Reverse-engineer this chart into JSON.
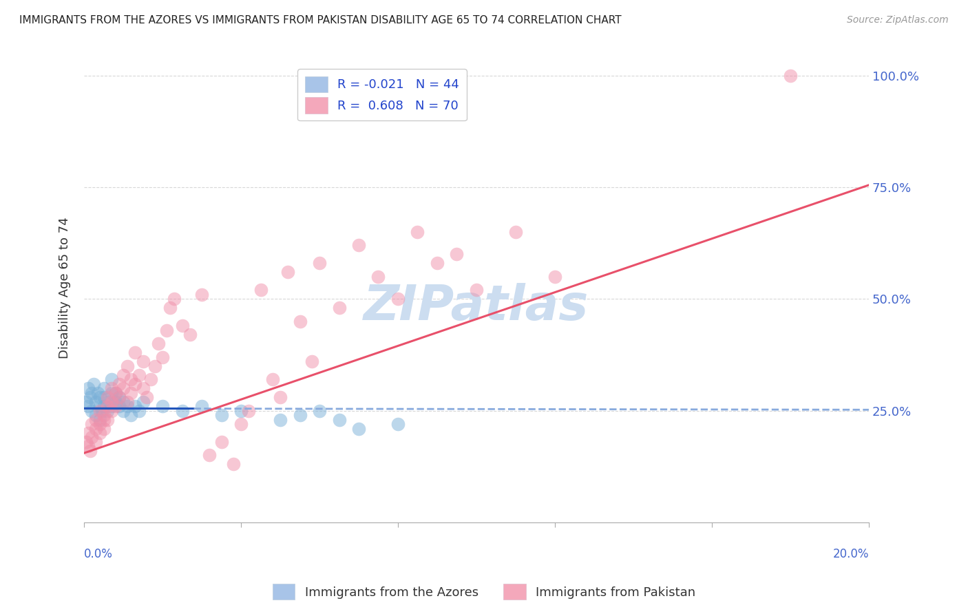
{
  "title": "IMMIGRANTS FROM THE AZORES VS IMMIGRANTS FROM PAKISTAN DISABILITY AGE 65 TO 74 CORRELATION CHART",
  "source": "Source: ZipAtlas.com",
  "ylabel": "Disability Age 65 to 74",
  "ytick_labels": [
    "100.0%",
    "75.0%",
    "50.0%",
    "25.0%"
  ],
  "ytick_values": [
    1.0,
    0.75,
    0.5,
    0.25
  ],
  "watermark": "ZIPatlas",
  "legend1_labels": [
    "R = -0.021   N = 44",
    "R =  0.608   N = 70"
  ],
  "legend1_box_colors": [
    "#a8c4e8",
    "#f4a8bb"
  ],
  "legend2_labels": [
    "Immigrants from the Azores",
    "Immigrants from Pakistan"
  ],
  "azores_color": "#7ab0d8",
  "pakistan_color": "#f090aa",
  "azores_line_color": "#2255bb",
  "pakistan_line_color": "#e8506a",
  "azores_line_solid_color": "#2255bb",
  "azores_line_dash_color": "#88aadd",
  "xlim": [
    0.0,
    0.2
  ],
  "ylim": [
    0.0,
    1.05
  ],
  "bg_color": "#ffffff",
  "grid_color": "#d8d8d8",
  "title_fontsize": 11,
  "axis_label_color": "#4466cc",
  "watermark_color": "#ccddf0",
  "watermark_fontsize": 52,
  "azores_x": [
    0.0005,
    0.001,
    0.001,
    0.0015,
    0.002,
    0.002,
    0.0025,
    0.003,
    0.003,
    0.0035,
    0.004,
    0.004,
    0.004,
    0.0045,
    0.005,
    0.005,
    0.005,
    0.006,
    0.006,
    0.007,
    0.007,
    0.007,
    0.008,
    0.008,
    0.009,
    0.009,
    0.01,
    0.01,
    0.011,
    0.012,
    0.013,
    0.014,
    0.015,
    0.02,
    0.025,
    0.03,
    0.035,
    0.04,
    0.05,
    0.055,
    0.06,
    0.065,
    0.07,
    0.08
  ],
  "azores_y": [
    0.27,
    0.3,
    0.26,
    0.28,
    0.29,
    0.25,
    0.31,
    0.27,
    0.24,
    0.29,
    0.28,
    0.26,
    0.23,
    0.25,
    0.28,
    0.26,
    0.3,
    0.25,
    0.27,
    0.29,
    0.26,
    0.32,
    0.27,
    0.29,
    0.26,
    0.28,
    0.25,
    0.27,
    0.26,
    0.24,
    0.26,
    0.25,
    0.27,
    0.26,
    0.25,
    0.26,
    0.24,
    0.25,
    0.23,
    0.24,
    0.25,
    0.23,
    0.21,
    0.22
  ],
  "pakistan_x": [
    0.0005,
    0.001,
    0.001,
    0.0015,
    0.002,
    0.002,
    0.003,
    0.003,
    0.003,
    0.004,
    0.004,
    0.004,
    0.005,
    0.005,
    0.005,
    0.006,
    0.006,
    0.006,
    0.007,
    0.007,
    0.007,
    0.008,
    0.008,
    0.009,
    0.009,
    0.01,
    0.01,
    0.011,
    0.011,
    0.012,
    0.012,
    0.013,
    0.013,
    0.014,
    0.015,
    0.015,
    0.016,
    0.017,
    0.018,
    0.019,
    0.02,
    0.021,
    0.022,
    0.023,
    0.025,
    0.027,
    0.03,
    0.032,
    0.035,
    0.038,
    0.04,
    0.042,
    0.045,
    0.048,
    0.05,
    0.052,
    0.055,
    0.058,
    0.06,
    0.065,
    0.07,
    0.075,
    0.08,
    0.085,
    0.09,
    0.095,
    0.1,
    0.11,
    0.12,
    0.18
  ],
  "pakistan_y": [
    0.18,
    0.2,
    0.17,
    0.16,
    0.22,
    0.19,
    0.18,
    0.21,
    0.23,
    0.2,
    0.25,
    0.22,
    0.24,
    0.21,
    0.23,
    0.26,
    0.28,
    0.23,
    0.27,
    0.25,
    0.3,
    0.29,
    0.26,
    0.31,
    0.28,
    0.3,
    0.33,
    0.27,
    0.35,
    0.32,
    0.29,
    0.31,
    0.38,
    0.33,
    0.36,
    0.3,
    0.28,
    0.32,
    0.35,
    0.4,
    0.37,
    0.43,
    0.48,
    0.5,
    0.44,
    0.42,
    0.51,
    0.15,
    0.18,
    0.13,
    0.22,
    0.25,
    0.52,
    0.32,
    0.28,
    0.56,
    0.45,
    0.36,
    0.58,
    0.48,
    0.62,
    0.55,
    0.5,
    0.65,
    0.58,
    0.6,
    0.52,
    0.65,
    0.55,
    1.0
  ],
  "az_trend_x0": 0.0,
  "az_trend_x_solid_end": 0.028,
  "az_trend_x_dash_start": 0.028,
  "az_trend_x1": 0.2,
  "az_trend_y0": 0.255,
  "az_trend_y1": 0.252,
  "pk_trend_y0": 0.155,
  "pk_trend_y1": 0.755
}
